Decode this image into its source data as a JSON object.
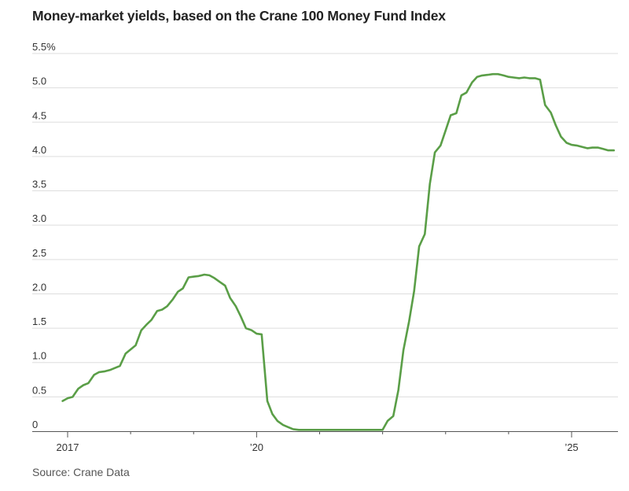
{
  "colors": {
    "line": "#5a9e47",
    "grid": "#dddddd",
    "axis": "#555555"
  },
  "chart_data": {
    "type": "line",
    "title": "Money-market yields, based on the Crane 100 Money Fund Index",
    "source": "Source: Crane Data",
    "ylim": [
      0,
      5.5
    ],
    "xlim": [
      2017.0,
      2026.25
    ],
    "grid": true,
    "y_ticks": [
      0,
      0.5,
      1.0,
      1.5,
      2.0,
      2.5,
      3.0,
      3.5,
      4.0,
      4.5,
      5.0,
      5.5
    ],
    "y_tick_labels": [
      "0",
      "0.5",
      "1.0",
      "1.5",
      "2.0",
      "2.5",
      "3.0",
      "3.5",
      "4.0",
      "4.5",
      "5.0",
      "5.5%"
    ],
    "x_ticks": [
      2017,
      2020,
      2025
    ],
    "x_tick_labels": [
      "2017",
      "’20",
      "’25"
    ],
    "x_minor_ticks": [
      2018,
      2019,
      2021,
      2022,
      2023,
      2024,
      2026
    ],
    "series": [
      {
        "x": [
          2016.92,
          2017.0,
          2017.08,
          2017.17,
          2017.25,
          2017.33,
          2017.42,
          2017.5,
          2017.58,
          2017.67,
          2017.75,
          2017.83,
          2017.92,
          2018.0,
          2018.08,
          2018.17,
          2018.25,
          2018.33,
          2018.42,
          2018.5,
          2018.58,
          2018.67,
          2018.75,
          2018.83,
          2018.92,
          2019.0,
          2019.08,
          2019.17,
          2019.25,
          2019.33,
          2019.42,
          2019.5,
          2019.58,
          2019.67,
          2019.75,
          2019.83,
          2019.92,
          2020.0,
          2020.08,
          2020.17,
          2020.25,
          2020.33,
          2020.42,
          2020.5,
          2020.58,
          2020.67,
          2020.75,
          2020.83,
          2020.92,
          2021.0,
          2021.5,
          2022.0,
          2022.08,
          2022.17,
          2022.25,
          2022.33,
          2022.42,
          2022.5,
          2022.58,
          2022.67,
          2022.75,
          2022.83,
          2022.92,
          2023.0,
          2023.08,
          2023.17,
          2023.25,
          2023.33,
          2023.42,
          2023.5,
          2023.58,
          2023.67,
          2023.75,
          2023.83,
          2023.92,
          2024.0,
          2024.08,
          2024.17,
          2024.25,
          2024.33,
          2024.42,
          2024.5,
          2024.58,
          2024.67,
          2024.75,
          2024.83,
          2024.92,
          2025.0,
          2025.08,
          2025.17,
          2025.25,
          2025.33,
          2025.42,
          2025.5,
          2025.58,
          2025.67
        ],
        "y": [
          0.44,
          0.48,
          0.5,
          0.62,
          0.67,
          0.7,
          0.82,
          0.86,
          0.87,
          0.89,
          0.92,
          0.95,
          1.13,
          1.19,
          1.25,
          1.47,
          1.55,
          1.62,
          1.75,
          1.77,
          1.82,
          1.92,
          2.03,
          2.08,
          2.24,
          2.25,
          2.26,
          2.28,
          2.27,
          2.23,
          2.17,
          2.12,
          1.94,
          1.82,
          1.67,
          1.5,
          1.47,
          1.42,
          1.41,
          0.44,
          0.25,
          0.15,
          0.09,
          0.06,
          0.03,
          0.02,
          0.02,
          0.02,
          0.02,
          0.02,
          0.02,
          0.02,
          0.15,
          0.22,
          0.6,
          1.18,
          1.6,
          2.04,
          2.69,
          2.87,
          3.6,
          4.06,
          4.16,
          4.38,
          4.6,
          4.63,
          4.89,
          4.93,
          5.08,
          5.16,
          5.18,
          5.19,
          5.2,
          5.2,
          5.18,
          5.16,
          5.15,
          5.14,
          5.15,
          5.14,
          5.14,
          5.12,
          4.75,
          4.64,
          4.45,
          4.29,
          4.2,
          4.17,
          4.16,
          4.14,
          4.12,
          4.13,
          4.13,
          4.11,
          4.09,
          4.09
        ]
      }
    ]
  }
}
